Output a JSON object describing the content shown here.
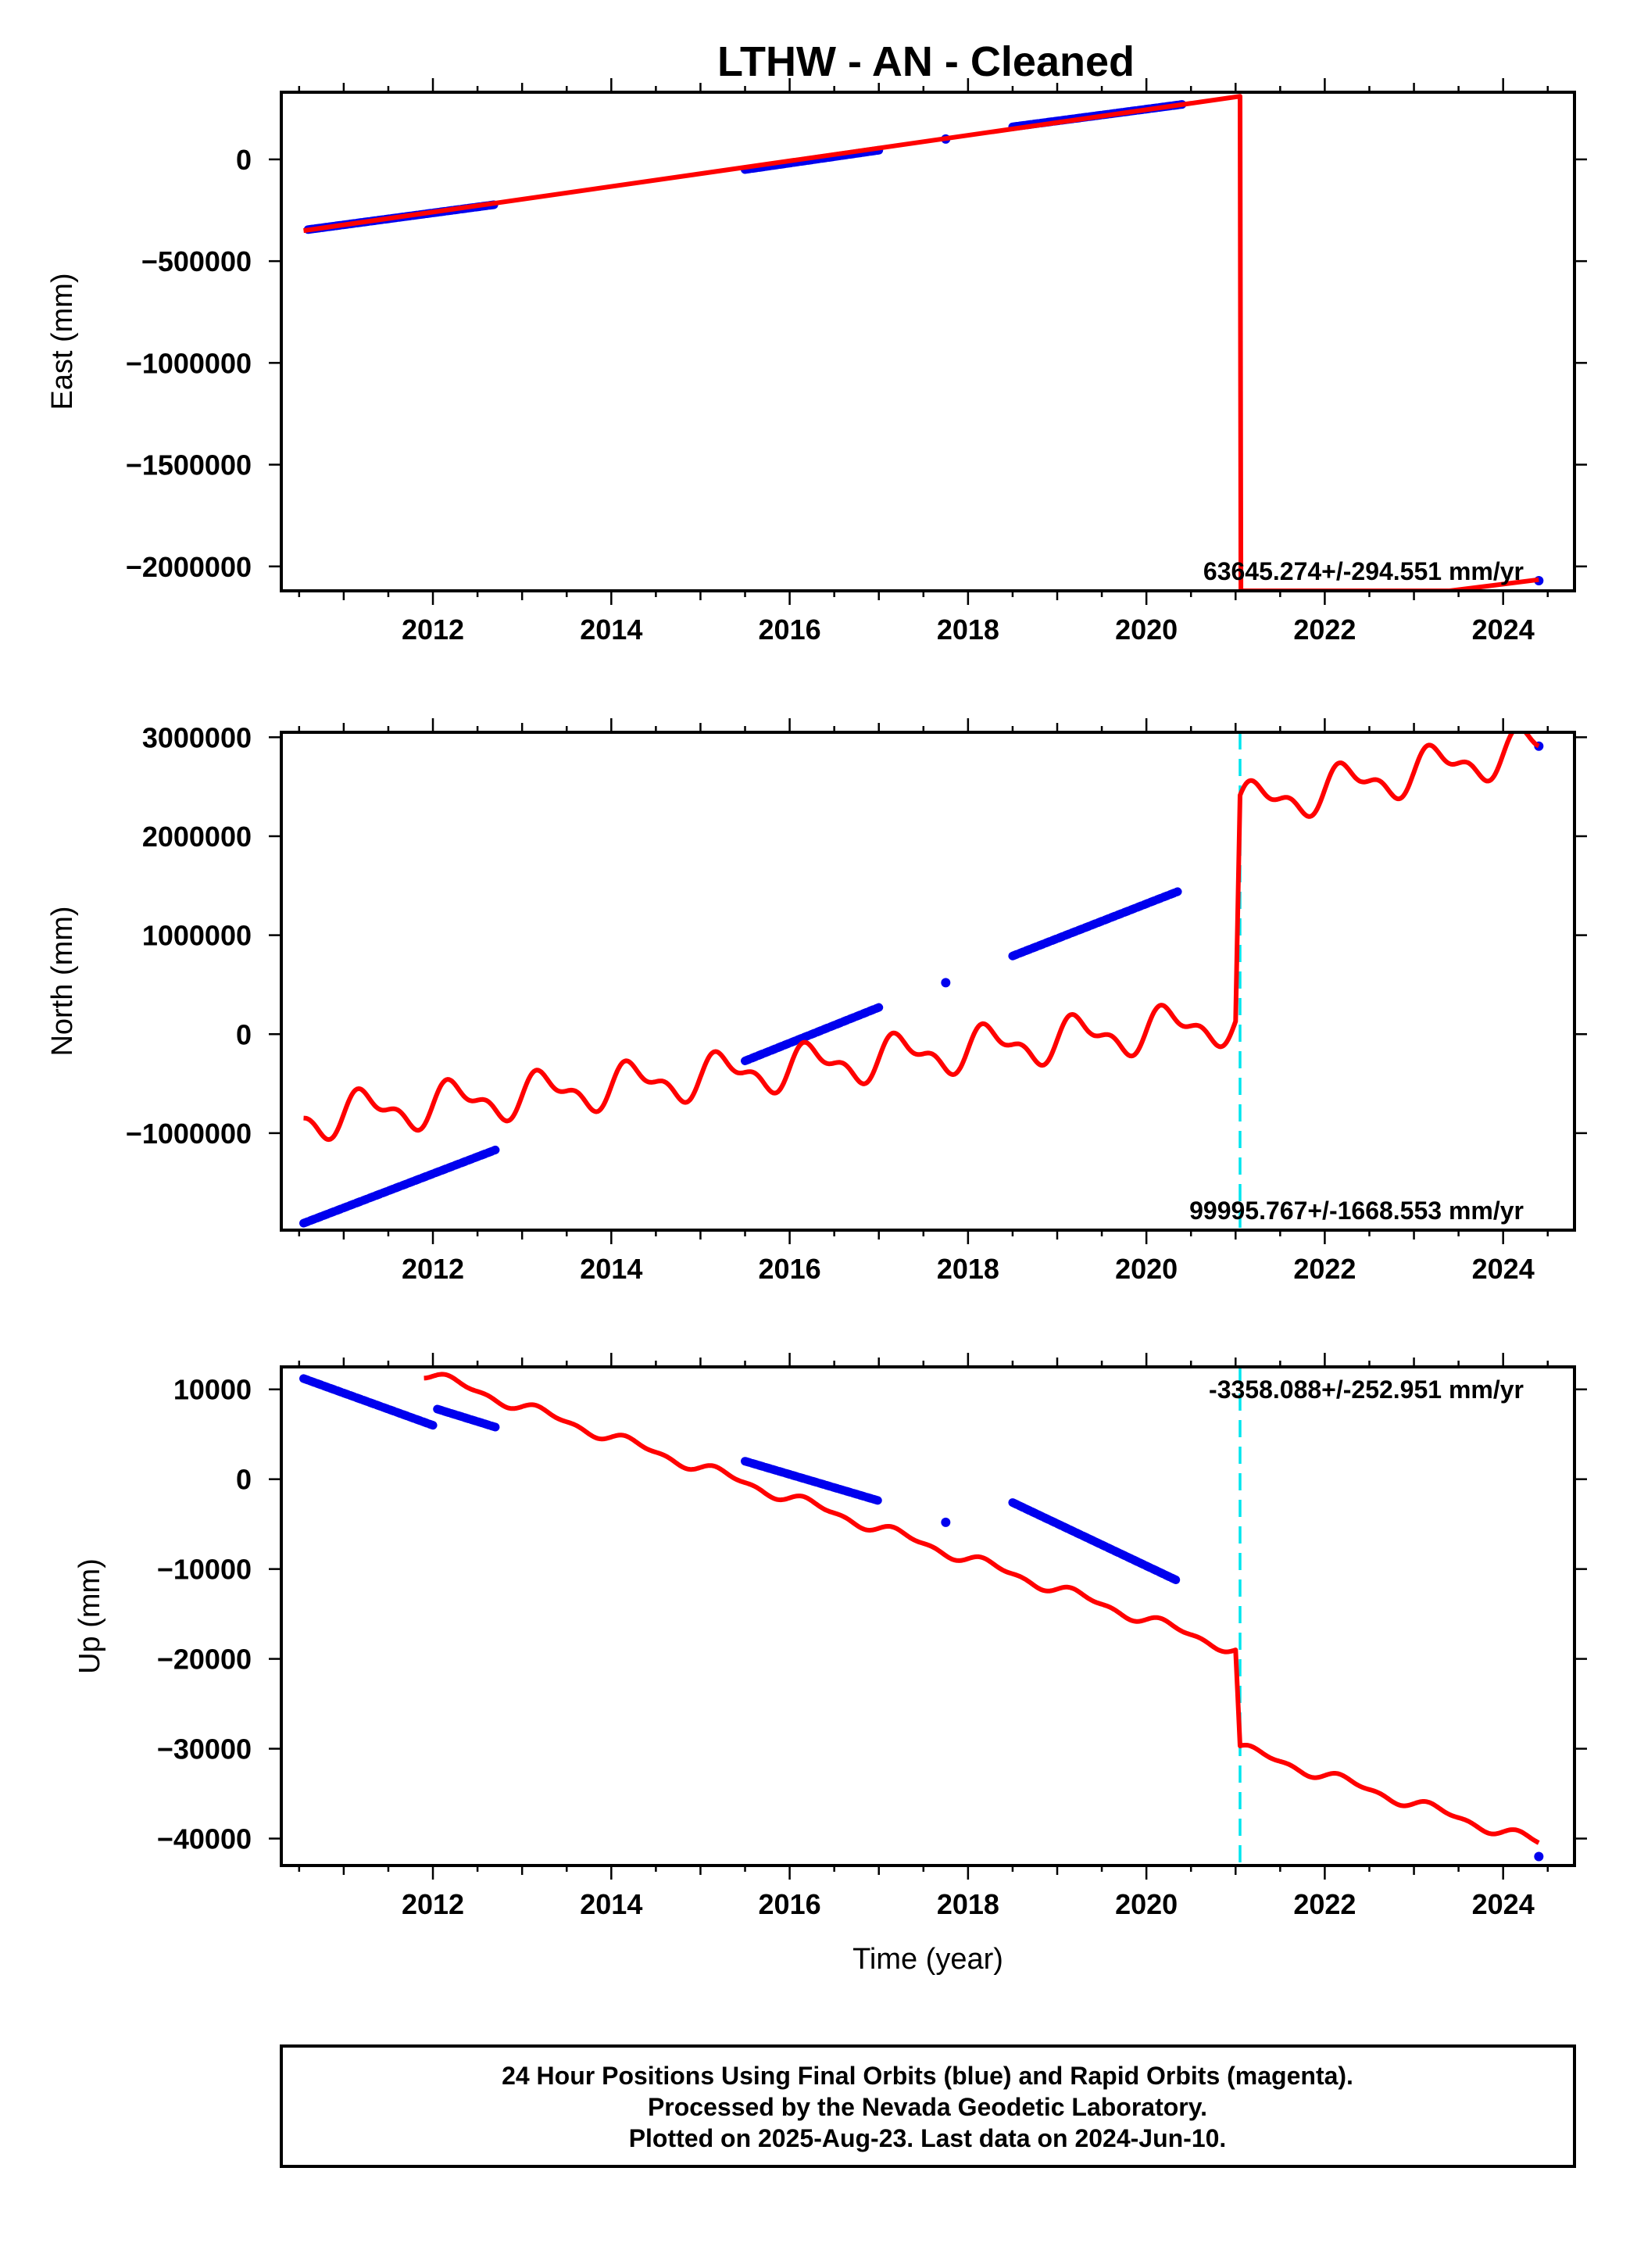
{
  "title": "LTHW  - AN - Cleaned",
  "footer": {
    "lines": [
      "24 Hour Positions Using Final Orbits (blue) and Rapid Orbits (magenta).",
      "Processed by the Nevada Geodetic Laboratory.",
      "Plotted on 2025-Aug-23. Last data on 2024-Jun-10."
    ]
  },
  "colors": {
    "final_orbits": "#0000ee",
    "model": "#ff0000",
    "break_line": "#00e5ee",
    "axes": "#000000"
  },
  "chart_data": [
    {
      "type": "scatter",
      "ylabel": "East (mm)",
      "xlabel": "",
      "xlim": [
        2010.3,
        2024.8
      ],
      "ylim": [
        -2120000,
        330000
      ],
      "x_ticks": [
        2012,
        2014,
        2016,
        2018,
        2020,
        2022,
        2024
      ],
      "y_ticks": [
        0,
        -500000,
        -1000000,
        -1500000,
        -2000000
      ],
      "y_tick_labels": [
        "0",
        "−500000",
        "−1000000",
        "−1500000",
        "−2000000"
      ],
      "rate_label": "63645.274+/-294.551 mm/yr",
      "rate_position": "bottom-right",
      "break_lines": [],
      "series": [
        {
          "role": "observations",
          "style": "dots",
          "segments": [
            {
              "x": [
                2010.6,
                2012.7
              ],
              "y": [
                -345000,
                -222000
              ]
            },
            {
              "x": [
                2015.5,
                2017.0
              ],
              "y": [
                -50000,
                45000
              ]
            },
            {
              "x": [
                2017.75
              ],
              "y": [
                100000
              ]
            },
            {
              "x": [
                2018.5,
                2020.4
              ],
              "y": [
                160000,
                270000
              ]
            },
            {
              "x": [
                2024.4
              ],
              "y": [
                -2070000
              ]
            }
          ]
        },
        {
          "role": "model",
          "style": "line",
          "points": [
            [
              2010.55,
              -350000
            ],
            [
              2021.05,
              310000
            ],
            [
              2021.06,
              -2120000
            ],
            [
              2023.4,
              -2120000
            ],
            [
              2024.4,
              -2065000
            ]
          ]
        }
      ]
    },
    {
      "type": "scatter",
      "ylabel": "North (mm)",
      "xlabel": "",
      "xlim": [
        2010.3,
        2024.8
      ],
      "ylim": [
        -1980000,
        3050000
      ],
      "x_ticks": [
        2012,
        2014,
        2016,
        2018,
        2020,
        2022,
        2024
      ],
      "y_ticks": [
        3000000,
        2000000,
        1000000,
        0,
        -1000000
      ],
      "y_tick_labels": [
        "3000000",
        "2000000",
        "1000000",
        "0",
        "−1000000"
      ],
      "rate_label": "99995.767+/-1668.553 mm/yr",
      "rate_position": "bottom-right",
      "break_lines": [
        2021.05
      ],
      "series": [
        {
          "role": "observations",
          "style": "dots",
          "segments": [
            {
              "x": [
                2010.55,
                2012.7
              ],
              "y": [
                -1910000,
                -1170000
              ]
            },
            {
              "x": [
                2015.5,
                2017.0
              ],
              "y": [
                -270000,
                270000
              ]
            },
            {
              "x": [
                2017.75
              ],
              "y": [
                520000
              ]
            },
            {
              "x": [
                2018.5,
                2020.35
              ],
              "y": [
                790000,
                1440000
              ]
            },
            {
              "x": [
                2024.4
              ],
              "y": [
                2910000
              ]
            }
          ]
        },
        {
          "role": "model",
          "style": "seasonal",
          "pieces": [
            {
              "x0": 2010.55,
              "x1": 2021.0,
              "y0": -850000,
              "y1": 130000,
              "amp": 180000,
              "phase": 0.0
            },
            {
              "x0": 2021.05,
              "x1": 2024.4,
              "y0": 2300000,
              "y1": 2900000,
              "amp": 180000,
              "phase": 0.0
            }
          ]
        }
      ]
    },
    {
      "type": "scatter",
      "ylabel": "Up (mm)",
      "xlabel": "Time (year)",
      "xlim": [
        2010.3,
        2024.8
      ],
      "ylim": [
        -43000,
        12500
      ],
      "x_ticks": [
        2012,
        2014,
        2016,
        2018,
        2020,
        2022,
        2024
      ],
      "y_ticks": [
        10000,
        0,
        -10000,
        -20000,
        -30000,
        -40000
      ],
      "y_tick_labels": [
        "10000",
        "0",
        "−10000",
        "−20000",
        "−30000",
        "−40000"
      ],
      "rate_label": "-3358.088+/-252.951 mm/yr",
      "rate_position": "top-right",
      "break_lines": [
        2021.05
      ],
      "series": [
        {
          "role": "observations",
          "style": "dots",
          "segments": [
            {
              "x": [
                2010.55,
                2012.0
              ],
              "y": [
                11200,
                6000
              ]
            },
            {
              "x": [
                2012.05,
                2012.7
              ],
              "y": [
                7800,
                5800
              ]
            },
            {
              "x": [
                2015.5,
                2017.0
              ],
              "y": [
                2000,
                -2400
              ]
            },
            {
              "x": [
                2017.75
              ],
              "y": [
                -4800
              ]
            },
            {
              "x": [
                2018.5,
                2020.35
              ],
              "y": [
                -2600,
                -11300
              ]
            },
            {
              "x": [
                2024.4
              ],
              "y": [
                -42000
              ]
            }
          ]
        },
        {
          "role": "model",
          "style": "seasonal",
          "pieces": [
            {
              "x0": 2011.9,
              "x1": 2021.0,
              "y0": 11800,
              "y1": -19000,
              "amp": 500,
              "phase": 0.0
            },
            {
              "x0": 2021.05,
              "x1": 2024.4,
              "y0": -30000,
              "y1": -40500,
              "amp": 500,
              "phase": 0.0
            }
          ]
        }
      ]
    }
  ]
}
